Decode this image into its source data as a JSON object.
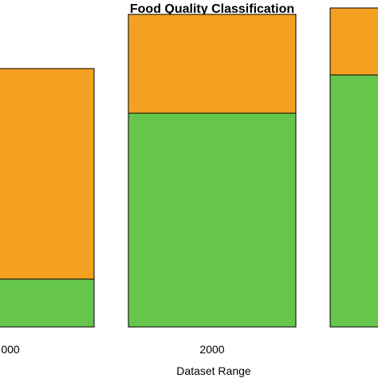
{
  "chart_data": {
    "type": "bar",
    "stacked": true,
    "title": "Food Quality Classification",
    "xlabel": "Dataset Range",
    "ylabel": "",
    "categories": [
      "000",
      "2000",
      ""
    ],
    "ylim": [
      0,
      1
    ],
    "series": [
      {
        "values": [
          0.15,
          0.67,
          0.79
        ],
        "color": "#66C64C"
      },
      {
        "values": [
          0.66,
          0.31,
          0.21
        ],
        "color": "#F4A020"
      }
    ],
    "grid": false,
    "legend": "none"
  }
}
